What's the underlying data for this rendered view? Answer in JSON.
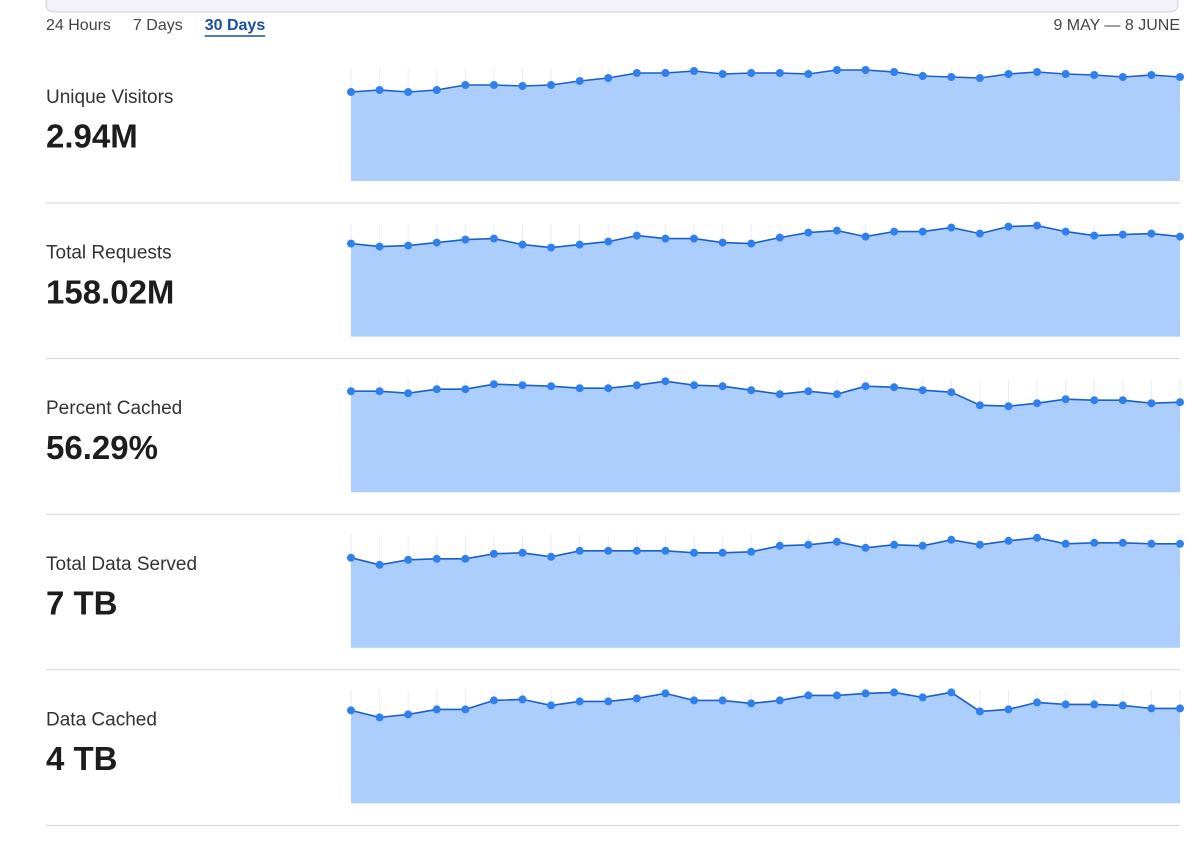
{
  "tabs": [
    "24 Hours",
    "7 Days",
    "30 Days"
  ],
  "selected_tab": 2,
  "date_range": "9 MAY — 8 JUNE",
  "metrics": [
    {
      "label": "Unique Visitors",
      "value": "2.94M",
      "chart": {
        "type": "area",
        "line_color": "#1c5fc7",
        "dot_color": "#2f80ed",
        "fill": "#abcefc",
        "ylim": [
          0,
          113
        ],
        "values": [
          89,
          91,
          89,
          91,
          96,
          96,
          95,
          96,
          100,
          103,
          108,
          108,
          110,
          107,
          108,
          108,
          107,
          111,
          111,
          109,
          105,
          104,
          103,
          107,
          109,
          107,
          106,
          104,
          106,
          104
        ]
      }
    },
    {
      "label": "Total Requests",
      "value": "158.02M",
      "chart": {
        "type": "area",
        "line_color": "#1c5fc7",
        "dot_color": "#2f80ed",
        "fill": "#abcefc",
        "ylim": [
          0,
          113
        ],
        "values": [
          93,
          90,
          91,
          94,
          97,
          98,
          92,
          89,
          92,
          95,
          101,
          98,
          98,
          94,
          93,
          99,
          104,
          106,
          100,
          105,
          105,
          109,
          103,
          110,
          111,
          105,
          101,
          102,
          103,
          100
        ]
      }
    },
    {
      "label": "Percent Cached",
      "value": "56.29%",
      "chart": {
        "type": "area",
        "line_color": "#1c5fc7",
        "dot_color": "#2f80ed",
        "fill": "#abcefc",
        "ylim": [
          0,
          113
        ],
        "values": [
          101,
          101,
          99,
          103,
          103,
          108,
          107,
          106,
          104,
          104,
          107,
          111,
          107,
          106,
          102,
          98,
          101,
          98,
          106,
          105,
          102,
          100,
          87,
          86,
          89,
          93,
          92,
          92,
          89,
          90
        ]
      }
    },
    {
      "label": "Total Data Served",
      "value": "7 TB",
      "chart": {
        "type": "area",
        "line_color": "#1c5fc7",
        "dot_color": "#2f80ed",
        "fill": "#abcefc",
        "ylim": [
          0,
          113
        ],
        "values": [
          90,
          83,
          88,
          89,
          89,
          94,
          95,
          91,
          97,
          97,
          97,
          97,
          95,
          95,
          96,
          102,
          103,
          106,
          100,
          103,
          102,
          108,
          103,
          107,
          110,
          104,
          105,
          105,
          104,
          104
        ]
      }
    },
    {
      "label": "Data Cached",
      "value": "4 TB",
      "chart": {
        "type": "area",
        "line_color": "#1c5fc7",
        "dot_color": "#2f80ed",
        "fill": "#abcefc",
        "ylim": [
          0,
          113
        ],
        "values": [
          93,
          86,
          89,
          94,
          94,
          103,
          104,
          98,
          102,
          102,
          105,
          110,
          103,
          103,
          100,
          103,
          108,
          108,
          110,
          111,
          106,
          111,
          92,
          94,
          101,
          99,
          99,
          98,
          95,
          95
        ]
      }
    }
  ]
}
